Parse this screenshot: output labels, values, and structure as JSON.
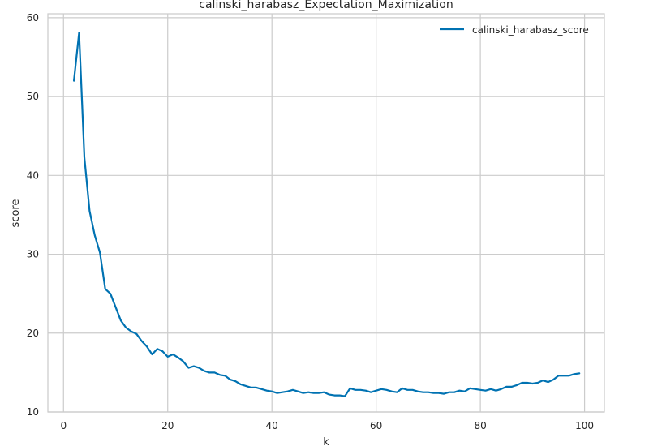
{
  "chart_data": {
    "type": "line",
    "title": "calinski_harabasz_Expectation_Maximization",
    "xlabel": "k",
    "ylabel": "score",
    "xlim": [
      -3.0,
      103.8
    ],
    "ylim": [
      10,
      60.5
    ],
    "xticks": [
      0,
      20,
      40,
      60,
      80,
      100
    ],
    "yticks": [
      10,
      20,
      30,
      40,
      50,
      60
    ],
    "grid": true,
    "legend_position": "top-right",
    "series": [
      {
        "name": "calinski_harabasz_score",
        "color": "#0072b2",
        "x": [
          2,
          3,
          4,
          5,
          6,
          7,
          8,
          9,
          10,
          11,
          12,
          13,
          14,
          15,
          16,
          17,
          18,
          19,
          20,
          21,
          22,
          23,
          24,
          25,
          26,
          27,
          28,
          29,
          30,
          31,
          32,
          33,
          34,
          35,
          36,
          37,
          38,
          39,
          40,
          41,
          42,
          43,
          44,
          45,
          46,
          47,
          48,
          49,
          50,
          51,
          52,
          53,
          54,
          55,
          56,
          57,
          58,
          59,
          60,
          61,
          62,
          63,
          64,
          65,
          66,
          67,
          68,
          69,
          70,
          71,
          72,
          73,
          74,
          75,
          76,
          77,
          78,
          79,
          80,
          81,
          82,
          83,
          84,
          85,
          86,
          87,
          88,
          89,
          90,
          91,
          92,
          93,
          94,
          95,
          96,
          97,
          98,
          99
        ],
        "y": [
          52.0,
          58.1,
          42.3,
          35.5,
          32.4,
          30.2,
          25.6,
          25.0,
          23.3,
          21.6,
          20.7,
          20.2,
          19.9,
          19.0,
          18.3,
          17.3,
          18.0,
          17.7,
          17.0,
          17.3,
          16.9,
          16.4,
          15.6,
          15.8,
          15.6,
          15.2,
          15.0,
          15.0,
          14.7,
          14.6,
          14.1,
          13.9,
          13.5,
          13.3,
          13.1,
          13.1,
          12.9,
          12.7,
          12.6,
          12.4,
          12.5,
          12.6,
          12.8,
          12.6,
          12.4,
          12.5,
          12.4,
          12.4,
          12.5,
          12.2,
          12.1,
          12.1,
          12.0,
          13.0,
          12.8,
          12.8,
          12.7,
          12.5,
          12.7,
          12.9,
          12.8,
          12.6,
          12.5,
          13.0,
          12.8,
          12.8,
          12.6,
          12.5,
          12.5,
          12.4,
          12.4,
          12.3,
          12.5,
          12.5,
          12.7,
          12.6,
          13.0,
          12.9,
          12.8,
          12.7,
          12.9,
          12.7,
          12.9,
          13.2,
          13.2,
          13.4,
          13.7,
          13.7,
          13.6,
          13.7,
          14.0,
          13.8,
          14.1,
          14.6,
          14.6,
          14.6,
          14.8,
          14.9
        ]
      }
    ]
  }
}
